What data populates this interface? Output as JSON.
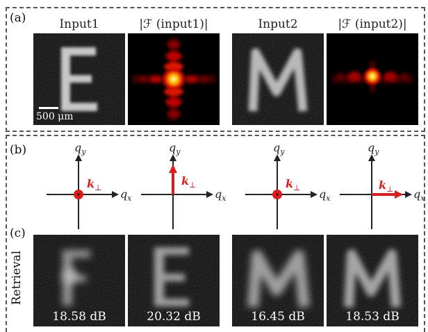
{
  "panel_a": {
    "label": "(a)",
    "titles": [
      "Input1",
      "|ℱ (input1)|",
      "Input2",
      "|ℱ (input2)|"
    ],
    "scale_bar": "500 μm"
  },
  "panel_b": {
    "label": "(b)",
    "axis_x": "q",
    "axis_x_sub": "x",
    "axis_y": "q",
    "axis_y_sub": "y",
    "k_label": "k",
    "k_sub": "⊥"
  },
  "panel_c": {
    "label": "(c)",
    "row_label": "Retrieval",
    "values": [
      "18.58 dB",
      "20.32 dB",
      "16.45 dB",
      "18.53 dB"
    ]
  },
  "colors": {
    "accent_red": "#e01b1b",
    "frame": "#555555"
  }
}
